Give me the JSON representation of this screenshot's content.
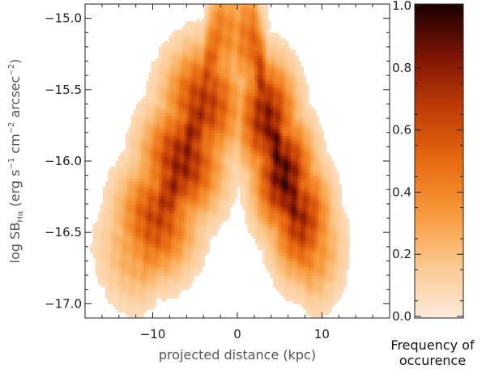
{
  "chart_data": [
    {
      "type": "heatmap",
      "title": "",
      "xlabel": "projected distance (kpc)",
      "ylabel_parts": [
        "log SB",
        "Hα",
        " (erg s",
        "−1",
        " cm",
        "−2",
        " arcsec",
        "−2",
        ")"
      ],
      "xlim": [
        -18,
        18
      ],
      "ylim": [
        -17.1,
        -14.9
      ],
      "x_ticks": [
        {
          "value": -10,
          "label": "−10"
        },
        {
          "value": 0,
          "label": "0"
        },
        {
          "value": 10,
          "label": "10"
        }
      ],
      "y_ticks": [
        {
          "value": -15.0,
          "label": "−15.0"
        },
        {
          "value": -15.5,
          "label": "−15.5"
        },
        {
          "value": -16.0,
          "label": "−16.0"
        },
        {
          "value": -16.5,
          "label": "−16.5"
        },
        {
          "value": -17.0,
          "label": "−17.0"
        }
      ],
      "color_scale": [
        "#fde9da",
        "#fbc98f",
        "#f7993a",
        "#e86a12",
        "#c03d06",
        "#7d1404",
        "#1a0000"
      ],
      "density_components": [
        {
          "name": "left-lobe",
          "points": [
            [
              -2.2,
              -15.1
            ],
            [
              -4.0,
              -15.6
            ],
            [
              -6.5,
              -16.0
            ],
            [
              -9.5,
              -16.4
            ],
            [
              -11.5,
              -16.6
            ]
          ],
          "peak": 0.85,
          "spread_x": 3.0,
          "spread_y": 0.26
        },
        {
          "name": "right-lobe",
          "points": [
            [
              1.8,
              -15.15
            ],
            [
              3.5,
              -15.7
            ],
            [
              5.5,
              -16.1
            ],
            [
              7.5,
              -16.4
            ],
            [
              9.0,
              -16.6
            ]
          ],
          "peak": 1.0,
          "spread_x": 2.2,
          "spread_y": 0.26
        }
      ]
    },
    {
      "type": "colorbar",
      "range": [
        0.0,
        1.0
      ],
      "ticks": [
        {
          "value": 0.0,
          "label": "0.0"
        },
        {
          "value": 0.2,
          "label": "0.2"
        },
        {
          "value": 0.4,
          "label": "0.4"
        },
        {
          "value": 0.6,
          "label": "0.6"
        },
        {
          "value": 0.8,
          "label": "0.8"
        },
        {
          "value": 1.0,
          "label": "1.0"
        }
      ],
      "title_lines": [
        "Frequency of",
        "occurence"
      ]
    }
  ]
}
